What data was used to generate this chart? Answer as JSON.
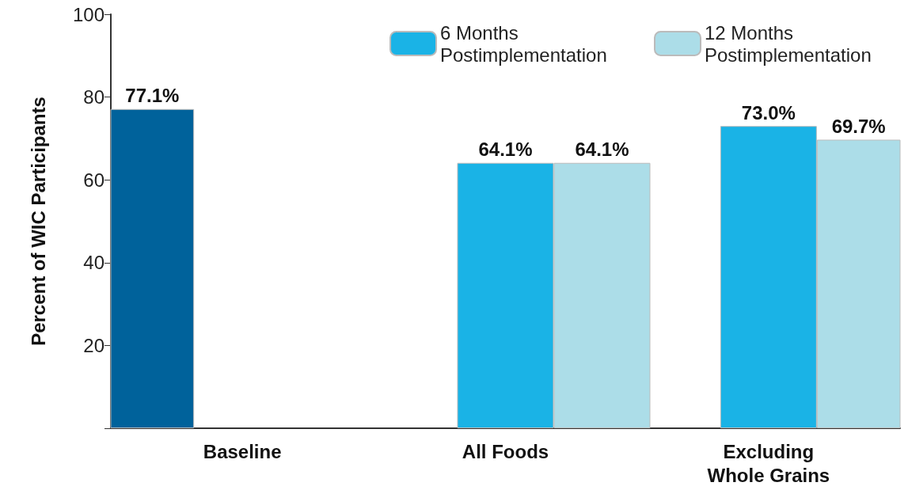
{
  "chart_data": {
    "type": "bar",
    "ylabel": "Percent of WIC Participants",
    "categories": [
      "Baseline",
      "All Foods",
      "Excluding\nWhole Grains"
    ],
    "series": [
      {
        "color": "#00629b",
        "values": [
          77.1,
          null,
          null
        ],
        "value_labels": [
          "77.1%",
          null,
          null
        ]
      },
      {
        "name": "6 Months Postimplementation",
        "color": "#1ab3e6",
        "values": [
          null,
          64.1,
          73.0
        ],
        "value_labels": [
          null,
          "64.1%",
          "73.0%"
        ]
      },
      {
        "name": "12 Months Postimplementation",
        "color": "#acdde8",
        "values": [
          null,
          64.1,
          69.7
        ],
        "value_labels": [
          null,
          "64.1%",
          "69.7%"
        ]
      }
    ],
    "ylim": [
      0,
      100
    ],
    "yticks": [
      {
        "value": 0,
        "label": null
      },
      20,
      40,
      60,
      80,
      100
    ],
    "grid": false,
    "legend": "top right"
  }
}
